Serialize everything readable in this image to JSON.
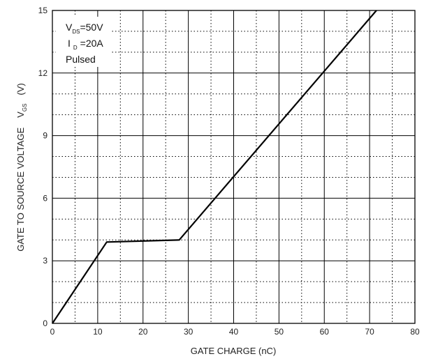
{
  "chart_data": {
    "type": "line",
    "xlabel": "GATE CHARGE (nC)",
    "ylabel_text": "GATE TO SOURCE VOLTAGE",
    "ylabel_symbol": "V",
    "ylabel_symbol_sub": "GS",
    "ylabel_unit": "(V)",
    "xlim": [
      0,
      80
    ],
    "ylim": [
      0,
      15
    ],
    "xticks": [
      0,
      10,
      20,
      30,
      40,
      50,
      60,
      70,
      80
    ],
    "yticks": [
      0,
      3,
      6,
      9,
      12,
      15
    ],
    "grid": true,
    "minor_grid": "dotted",
    "series": [
      {
        "x": [
          0,
          12,
          28,
          71.5
        ],
        "y": [
          0,
          3.9,
          4.0,
          15
        ]
      }
    ],
    "annotations": {
      "vds_symbol": "V",
      "vds_sub": "DS",
      "vds_value": "=50V",
      "id_symbol": "I",
      "id_sub": "D",
      "id_value": "=20A",
      "mode": "Pulsed"
    }
  }
}
